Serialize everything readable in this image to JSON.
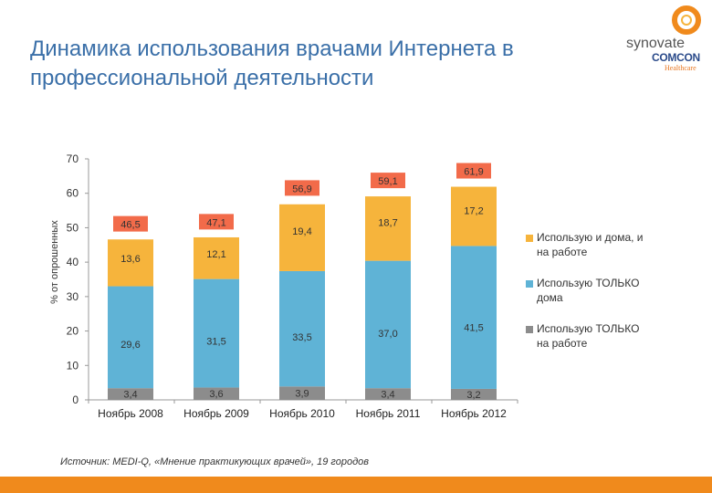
{
  "title": "Динамика использования врачами Интернета в профессиональной деятельности",
  "logo": {
    "brand": "synovate",
    "sub": "COMCON",
    "tag": "Healthcare"
  },
  "source": "Источник:  MEDI-Q, «Мнение практикующих врачей», 19 городов",
  "colors": {
    "work_only": "#8c8c8c",
    "home_only": "#5fb3d6",
    "both": "#f6b43c",
    "total_box": "#f26b4a",
    "axis": "#333333",
    "accent_bar": "#f08a1c"
  },
  "chart_data": {
    "type": "bar",
    "stacked": true,
    "ylabel": "% от опрошенных",
    "ylim": [
      0,
      70
    ],
    "yticks": [
      0,
      10,
      20,
      30,
      40,
      50,
      60,
      70
    ],
    "categories": [
      "Ноябрь 2008",
      "Ноябрь 2009",
      "Ноябрь 2010",
      "Ноябрь 2011",
      "Ноябрь 2012"
    ],
    "series": [
      {
        "key": "work_only",
        "name": "Использую ТОЛЬКО на работе",
        "values": [
          3.4,
          3.6,
          3.9,
          3.4,
          3.2
        ],
        "labels": [
          "3,4",
          "3,6",
          "3,9",
          "3,4",
          "3,2"
        ]
      },
      {
        "key": "home_only",
        "name": "Использую ТОЛЬКО дома",
        "values": [
          29.6,
          31.5,
          33.5,
          37.0,
          41.5
        ],
        "labels": [
          "29,6",
          "31,5",
          "33,5",
          "37,0",
          "41,5"
        ]
      },
      {
        "key": "both",
        "name": "Использую и дома, и на работе",
        "values": [
          13.6,
          12.1,
          19.4,
          18.7,
          17.2
        ],
        "labels": [
          "13,6",
          "12,1",
          "19,4",
          "18,7",
          "17,2"
        ]
      }
    ],
    "totals": [
      46.5,
      47.1,
      56.9,
      59.1,
      61.9
    ],
    "total_labels": [
      "46,5",
      "47,1",
      "56,9",
      "59,1",
      "61,9"
    ],
    "legend": [
      {
        "key": "both",
        "lines": [
          "Использую и дома, и",
          "на работе"
        ]
      },
      {
        "key": "home_only",
        "lines": [
          "Использую ТОЛЬКО",
          "дома"
        ]
      },
      {
        "key": "work_only",
        "lines": [
          "Использую ТОЛЬКО",
          "на работе"
        ]
      }
    ]
  }
}
